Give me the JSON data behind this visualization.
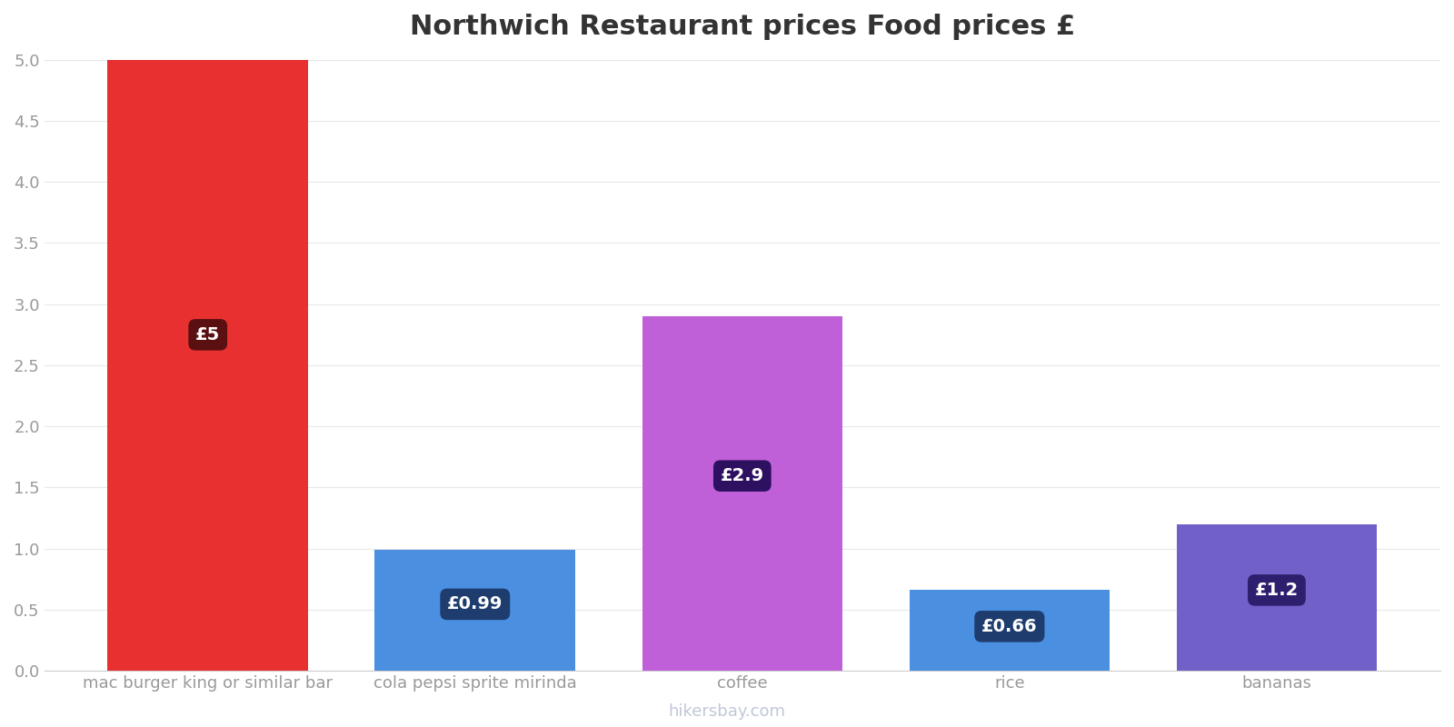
{
  "title": "Northwich Restaurant prices Food prices £",
  "categories": [
    "mac burger king or similar bar",
    "cola pepsi sprite mirinda",
    "coffee",
    "rice",
    "bananas"
  ],
  "values": [
    5.0,
    0.99,
    2.9,
    0.66,
    1.2
  ],
  "bar_colors": [
    "#e83030",
    "#4a8fe0",
    "#c060d8",
    "#4a8fe0",
    "#7060c8"
  ],
  "label_texts": [
    "£5",
    "£0.99",
    "£2.9",
    "£0.66",
    "£1.2"
  ],
  "label_bg_colors": [
    "#5a1010",
    "#1e3d6e",
    "#2e1060",
    "#1e3d6e",
    "#2e1f6e"
  ],
  "ylim": [
    0,
    5.0
  ],
  "yticks": [
    0.0,
    0.5,
    1.0,
    1.5,
    2.0,
    2.5,
    3.0,
    3.5,
    4.0,
    4.5,
    5.0
  ],
  "background_color": "#ffffff",
  "grid_color": "#e8e8e8",
  "title_fontsize": 22,
  "tick_label_fontsize": 13,
  "watermark": "hikersbay.com",
  "bar_width": 0.75
}
